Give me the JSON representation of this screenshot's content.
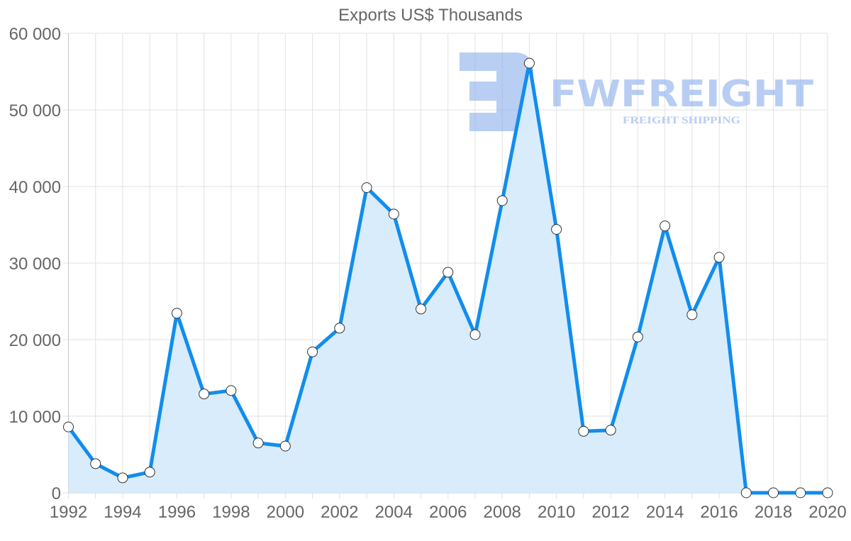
{
  "chart_data": {
    "type": "line",
    "title": "Exports US$ Thousands",
    "xlabel": "",
    "ylabel": "",
    "ylim": [
      0,
      60000
    ],
    "grid": true,
    "legend": null,
    "fill": true,
    "x": [
      1992,
      1993,
      1994,
      1995,
      1996,
      1997,
      1998,
      1999,
      2000,
      2001,
      2002,
      2003,
      2004,
      2005,
      2006,
      2007,
      2008,
      2009,
      2010,
      2011,
      2012,
      2013,
      2014,
      2015,
      2016,
      2017,
      2018,
      2019,
      2020
    ],
    "series": [
      {
        "name": "Exports US$ Thousands",
        "values": [
          8600,
          3800,
          1950,
          2700,
          23450,
          12900,
          13350,
          6500,
          6100,
          18400,
          21500,
          39850,
          36400,
          24000,
          28800,
          20650,
          38150,
          56100,
          34400,
          8030,
          8180,
          20350,
          34850,
          23250,
          30750,
          0,
          0,
          0,
          0
        ]
      }
    ],
    "y_ticks": [
      0,
      10000,
      20000,
      30000,
      40000,
      50000,
      60000
    ],
    "y_tick_labels": [
      "0",
      "10 000",
      "20 000",
      "30 000",
      "40 000",
      "50 000",
      "60 000"
    ],
    "x_tick_labels": [
      "1992",
      "1994",
      "1996",
      "1998",
      "2000",
      "2002",
      "2004",
      "2006",
      "2008",
      "2010",
      "2012",
      "2014",
      "2016",
      "2018",
      "2020"
    ]
  },
  "colors": {
    "line": "#118ded",
    "fill": "#d6ebfb",
    "grid": "#e2e2e2",
    "axis_text": "#666666",
    "point_fill": "#ffffff",
    "point_stroke": "#333333",
    "watermark": "#7ea6ea"
  },
  "watermark": {
    "brand": "FWFREIGHT",
    "tagline": "FREIGHT SHIPPING"
  }
}
